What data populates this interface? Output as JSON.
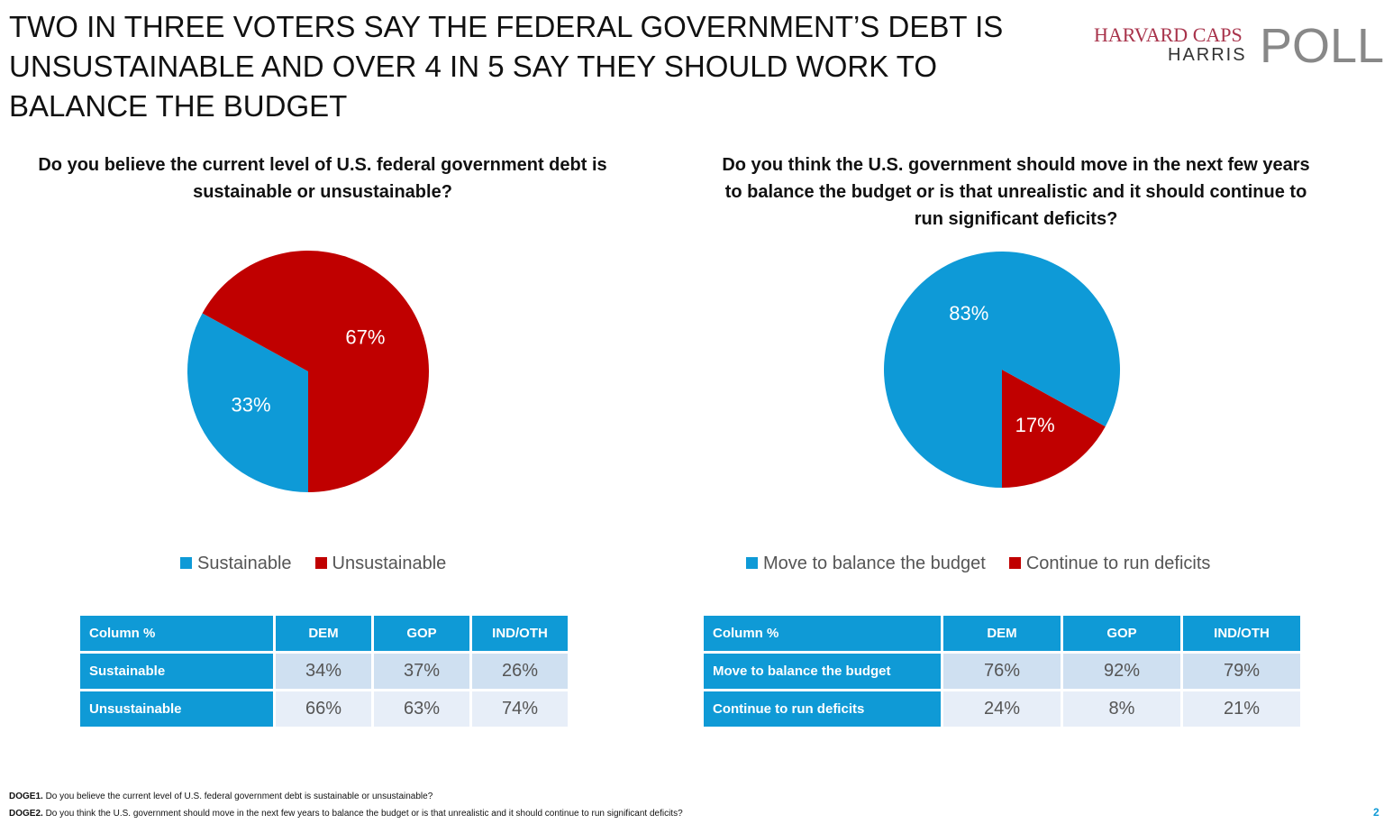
{
  "title": "TWO IN THREE VOTERS SAY THE FEDERAL GOVERNMENT’S DEBT IS UNSUSTAINABLE AND OVER 4 IN 5 SAY THEY SHOULD WORK TO BALANCE THE BUDGET",
  "logo": {
    "line1": "HARVARD CAPS",
    "line2": "HARRIS",
    "line3": "POLL"
  },
  "colors": {
    "blue": "#0e9ad7",
    "red": "#c00000"
  },
  "chart_data": [
    {
      "type": "pie",
      "title": "Do you believe the current level of U.S. federal government debt is sustainable or unsustainable?",
      "labels": [
        "Sustainable",
        "Unsustainable"
      ],
      "values": [
        33,
        67
      ],
      "data_labels": [
        "33%",
        "67%"
      ]
    },
    {
      "type": "pie",
      "title": "Do you think the U.S. government should move in the next few years to balance the budget or is that unrealistic and it should continue to run significant deficits?",
      "labels": [
        "Move to balance the budget",
        "Continue to run deficits"
      ],
      "values": [
        83,
        17
      ],
      "data_labels": [
        "83%",
        "17%"
      ]
    }
  ],
  "tables": [
    {
      "header": [
        "Column %",
        "DEM",
        "GOP",
        "IND/OTH"
      ],
      "rows": [
        [
          "Sustainable",
          "34%",
          "37%",
          "26%"
        ],
        [
          "Unsustainable",
          "66%",
          "63%",
          "74%"
        ]
      ]
    },
    {
      "header": [
        "Column %",
        "DEM",
        "GOP",
        "IND/OTH"
      ],
      "rows": [
        [
          "Move to balance the budget",
          "76%",
          "92%",
          "79%"
        ],
        [
          "Continue to run deficits",
          "24%",
          "8%",
          "21%"
        ]
      ]
    }
  ],
  "footer": [
    {
      "code": "DOGE1.",
      "text": " Do you believe the current level of U.S. federal government debt is sustainable or unsustainable?"
    },
    {
      "code": "DOGE2.",
      "text": " Do you think the U.S. government should move in the next few years to balance the budget or is that unrealistic and it should continue to run significant deficits?"
    }
  ],
  "page_number": "2"
}
